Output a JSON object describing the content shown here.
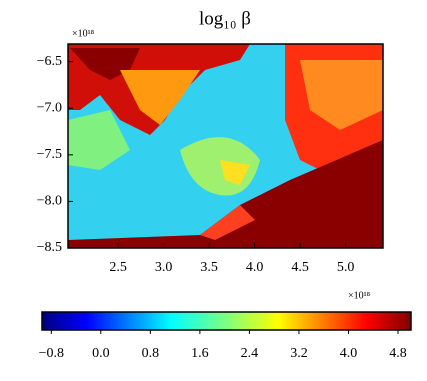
{
  "chart_data": {
    "type": "heatmap",
    "title": "log₁₀ β",
    "xlim": [
      1.95,
      5.41
    ],
    "ylim": [
      -8.5,
      -6.31
    ],
    "xticks": [
      2.5,
      {
        "value": 3.0,
        "label": "3.0"
      },
      3.5,
      {
        "value": 4.0,
        "label": "4.0"
      },
      4.5,
      {
        "value": 5.0,
        "label": "5.0"
      }
    ],
    "yticks": [
      {
        "value": -6.5,
        "label": "−6.5"
      },
      {
        "value": -7.0,
        "label": "−7.0"
      },
      {
        "value": -7.5,
        "label": "−7.5"
      },
      {
        "value": -8.0,
        "label": "−8.0"
      },
      {
        "value": -8.5,
        "label": "−8.5"
      }
    ],
    "xoffset": "×10¹⁸",
    "yoffset": "×10¹⁸",
    "colormap": "jet",
    "clim": [
      -0.95,
      5.01
    ],
    "cticks": [
      {
        "value": -0.8,
        "label": "−0.8"
      },
      {
        "value": 0.0,
        "label": "0.0"
      },
      0.8,
      1.6,
      2.4,
      3.2,
      {
        "value": 4.0,
        "label": "4.0"
      },
      4.8
    ]
  }
}
